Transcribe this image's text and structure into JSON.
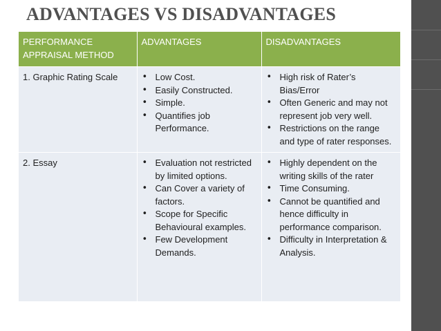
{
  "title": "ADVANTAGES VS DISADVANTAGES",
  "colors": {
    "header_green": "#8bb04c",
    "row_fill": "#e9edf3",
    "title_gray": "#505050",
    "side_bar": "#505050"
  },
  "table": {
    "headers": [
      "PERFORMANCE APPRAISAL METHOD",
      "ADVANTAGES",
      "DISADVANTAGES"
    ],
    "rows": [
      {
        "method": "1. Graphic Rating Scale",
        "advantages": [
          "Low Cost.",
          "Easily Constructed.",
          "Simple.",
          "Quantifies job Performance."
        ],
        "disadvantages": [
          "High risk of Rater’s Bias/Error",
          "Often Generic and may not represent job very well.",
          "Restrictions on the range and type of rater responses."
        ]
      },
      {
        "method": "2. Essay",
        "advantages": [
          "Evaluation not restricted by limited options.",
          "Can Cover a variety of factors.",
          "Scope for Specific Behavioural examples.",
          "Few Development Demands."
        ],
        "disadvantages": [
          "Highly dependent on the writing skills of the rater",
          "Time Consuming.",
          "Cannot be quantified and hence difficulty in performance comparison.",
          "Difficulty in Interpretation & Analysis."
        ]
      }
    ]
  }
}
